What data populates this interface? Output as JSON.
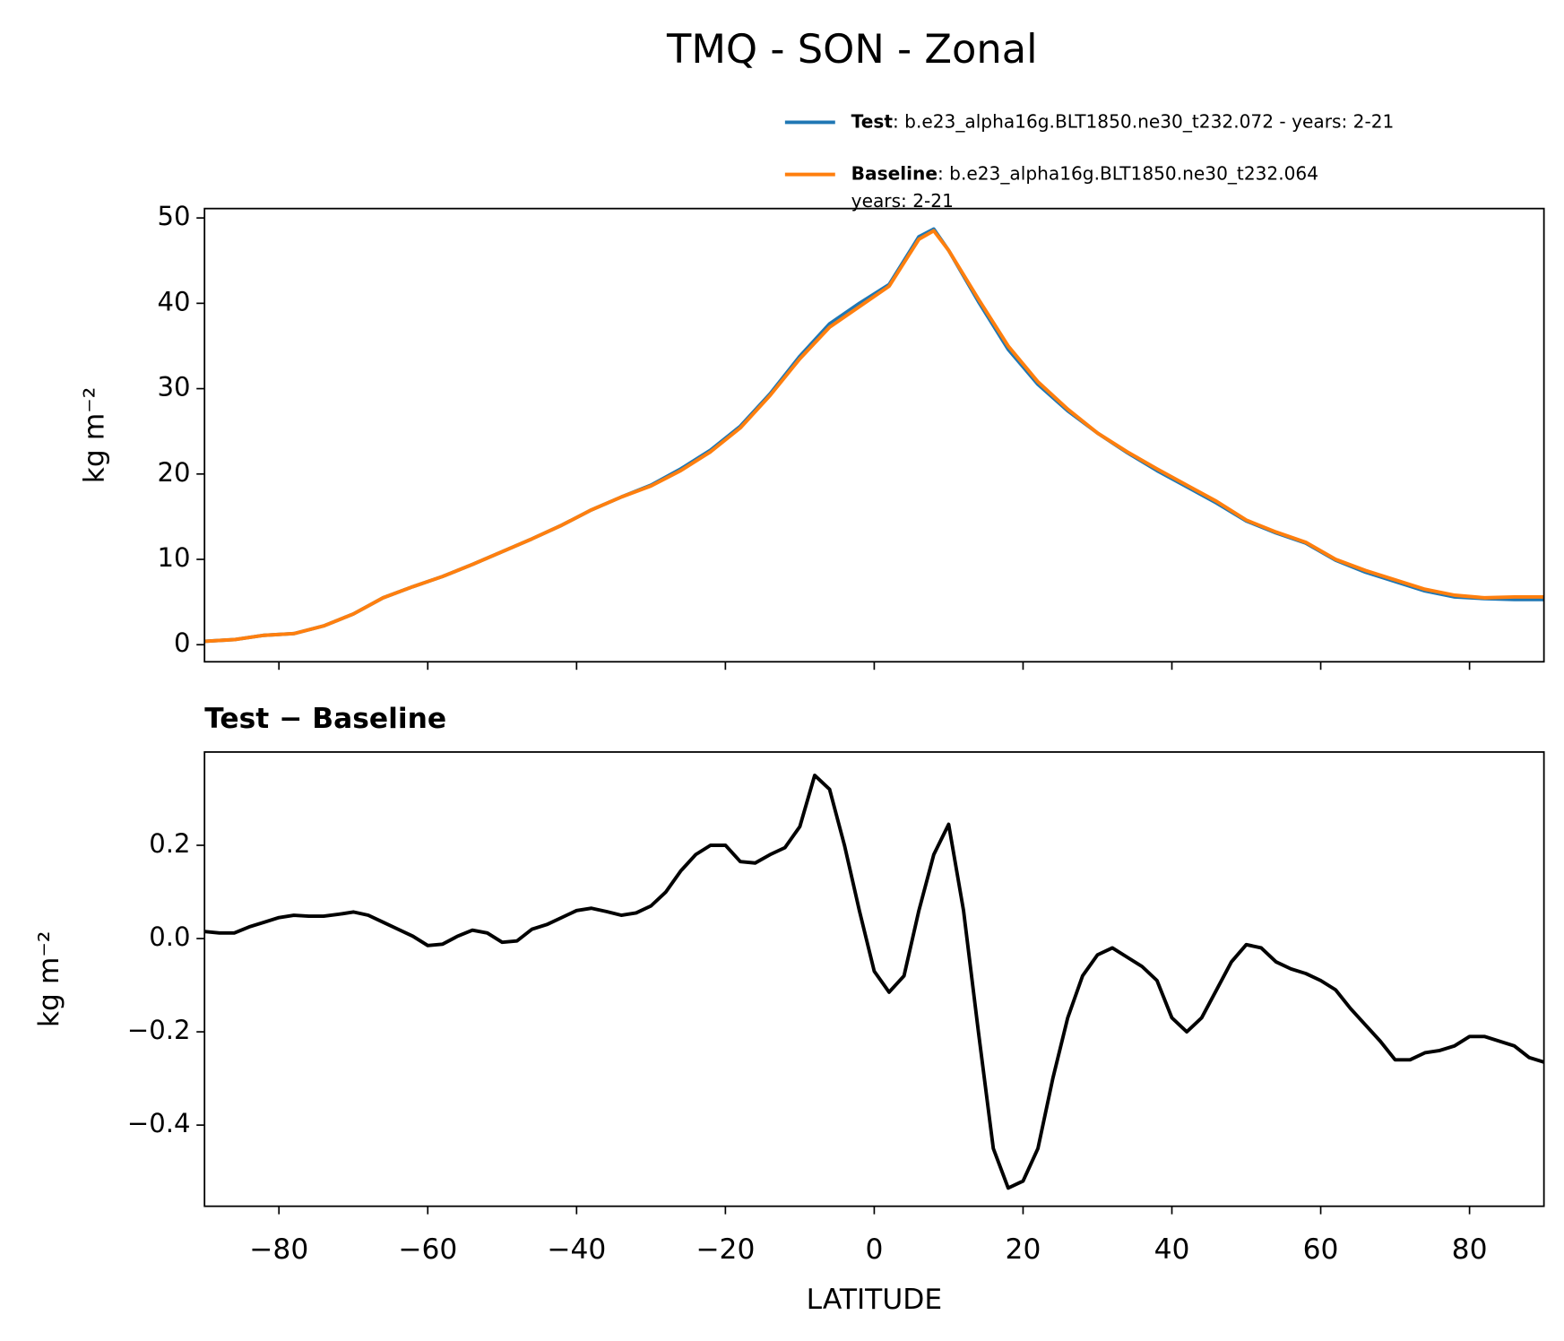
{
  "chart_data": [
    {
      "type": "line",
      "title": "TMQ - SON - Zonal",
      "ylabel": "kg m⁻²",
      "x": [
        -90,
        -86,
        -82,
        -78,
        -74,
        -70,
        -66,
        -62,
        -58,
        -54,
        -50,
        -46,
        -42,
        -38,
        -34,
        -30,
        -26,
        -22,
        -18,
        -14,
        -10,
        -6,
        -2,
        2,
        6,
        8,
        10,
        14,
        18,
        22,
        26,
        30,
        34,
        38,
        42,
        46,
        50,
        54,
        58,
        62,
        66,
        70,
        74,
        78,
        82,
        86,
        90
      ],
      "series": [
        {
          "name": "Test",
          "label": [
            ": b.e23_alpha16g.BLT1850.ne30_t232.072 - years: 2-21"
          ],
          "color": "#1f77b4",
          "values": [
            0.4,
            0.6,
            1.1,
            1.3,
            2.2,
            3.6,
            5.5,
            6.8,
            8.0,
            9.4,
            10.9,
            12.4,
            14.0,
            15.8,
            17.3,
            18.7,
            20.6,
            22.8,
            25.6,
            29.4,
            33.8,
            37.6,
            40.0,
            42.2,
            47.8,
            48.7,
            46.2,
            40.2,
            34.6,
            30.5,
            27.4,
            24.8,
            22.5,
            20.4,
            18.5,
            16.6,
            14.5,
            13.1,
            11.9,
            9.9,
            8.5,
            7.4,
            6.3,
            5.6,
            5.4,
            5.3,
            5.3
          ]
        },
        {
          "name": "Baseline",
          "label": [
            ": b.e23_alpha16g.BLT1850.ne30_t232.064",
            "years: 2-21"
          ],
          "color": "#ff7f0e",
          "values": [
            0.4,
            0.6,
            1.1,
            1.3,
            2.2,
            3.6,
            5.5,
            6.8,
            8.0,
            9.4,
            10.9,
            12.4,
            14.0,
            15.8,
            17.3,
            18.6,
            20.4,
            22.6,
            25.4,
            29.2,
            33.5,
            37.2,
            39.6,
            42.0,
            47.5,
            48.5,
            46.2,
            40.5,
            35.0,
            30.8,
            27.6,
            24.8,
            22.6,
            20.6,
            18.7,
            16.8,
            14.6,
            13.2,
            12.0,
            10.0,
            8.7,
            7.6,
            6.5,
            5.8,
            5.5,
            5.6,
            5.6
          ]
        }
      ],
      "xlim": [
        -90,
        90
      ],
      "xticks": [
        -80,
        -60,
        -40,
        -20,
        0,
        20,
        40,
        60,
        80
      ],
      "ylim": [
        -2.0,
        51.1
      ],
      "yticks": [
        0,
        10,
        20,
        30,
        40,
        50
      ]
    },
    {
      "type": "line",
      "title": "Test − Baseline",
      "ylabel": "kg m⁻²",
      "xlabel": "LATITUDE",
      "x": [
        -90,
        -88,
        -86,
        -84,
        -82,
        -80,
        -78,
        -76,
        -74,
        -72,
        -70,
        -68,
        -66,
        -64,
        -62,
        -60,
        -58,
        -56,
        -54,
        -52,
        -50,
        -48,
        -46,
        -44,
        -42,
        -40,
        -38,
        -36,
        -34,
        -32,
        -30,
        -28,
        -26,
        -24,
        -22,
        -20,
        -18,
        -16,
        -14,
        -12,
        -10,
        -8,
        -6,
        -4,
        -2,
        0,
        2,
        4,
        6,
        8,
        10,
        12,
        14,
        16,
        18,
        20,
        22,
        24,
        26,
        28,
        30,
        32,
        34,
        36,
        38,
        40,
        42,
        44,
        46,
        48,
        50,
        52,
        54,
        56,
        58,
        60,
        62,
        64,
        66,
        68,
        70,
        72,
        74,
        76,
        78,
        80,
        82,
        84,
        86,
        88,
        90
      ],
      "series": [
        {
          "color": "#000000",
          "values": [
            0.015,
            0.012,
            0.012,
            0.025,
            0.035,
            0.045,
            0.05,
            0.048,
            0.048,
            0.052,
            0.057,
            0.05,
            0.035,
            0.02,
            0.005,
            -0.015,
            -0.012,
            0.005,
            0.018,
            0.012,
            -0.008,
            -0.005,
            0.02,
            0.03,
            0.045,
            0.06,
            0.065,
            0.058,
            0.05,
            0.055,
            0.07,
            0.1,
            0.145,
            0.18,
            0.2,
            0.2,
            0.165,
            0.162,
            0.18,
            0.195,
            0.24,
            0.35,
            0.32,
            0.2,
            0.06,
            -0.07,
            -0.115,
            -0.08,
            0.06,
            0.18,
            0.245,
            0.06,
            -0.2,
            -0.45,
            -0.535,
            -0.52,
            -0.45,
            -0.3,
            -0.17,
            -0.08,
            -0.035,
            -0.02,
            -0.04,
            -0.06,
            -0.09,
            -0.17,
            -0.2,
            -0.17,
            -0.11,
            -0.05,
            -0.013,
            -0.02,
            -0.05,
            -0.065,
            -0.075,
            -0.09,
            -0.11,
            -0.15,
            -0.185,
            -0.22,
            -0.26,
            -0.26,
            -0.245,
            -0.24,
            -0.23,
            -0.21,
            -0.21,
            -0.22,
            -0.23,
            -0.255,
            -0.265
          ]
        }
      ],
      "xlim": [
        -90,
        90
      ],
      "xticks": [
        {
          "value": -80,
          "label": "−80"
        },
        {
          "value": -60,
          "label": "−60"
        },
        {
          "value": -40,
          "label": "−40"
        },
        {
          "value": -20,
          "label": "−20"
        },
        0,
        20,
        40,
        60,
        80
      ],
      "ylim": [
        -0.574,
        0.4
      ],
      "yticks": [
        {
          "value": -0.4,
          "label": "−0.4"
        },
        {
          "value": -0.2,
          "label": "−0.2"
        },
        {
          "value": 0.0,
          "label": "0.0"
        },
        {
          "value": 0.2,
          "label": "0.2"
        }
      ]
    }
  ]
}
